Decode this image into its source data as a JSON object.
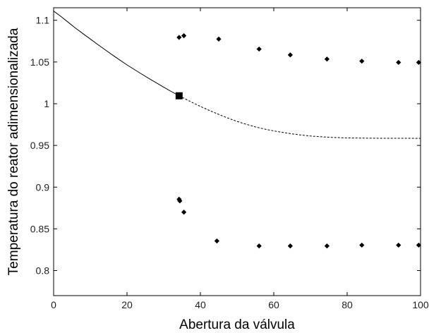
{
  "chart_data": {
    "type": "scatter",
    "title": "",
    "xlabel": "Abertura da válvula",
    "ylabel": "Temperatura do reator adimensionalizada",
    "xlim": [
      0,
      100
    ],
    "ylim": [
      0.77,
      1.115
    ],
    "grid": false,
    "legend": "none",
    "xticks": [
      0,
      20,
      40,
      60,
      80,
      100
    ],
    "xtick_labels": [
      "0",
      "20",
      "40",
      "60",
      "80",
      "100"
    ],
    "yticks": [
      0.8,
      0.85,
      0.9,
      0.95,
      1.0,
      1.05,
      1.1
    ],
    "ytick_labels": [
      "0.8",
      "0.85",
      "0.9",
      "0.95",
      "1",
      "1.05",
      "1.1"
    ],
    "series": [
      {
        "style": "solid-line",
        "color": "#000000",
        "x": [
          0,
          2,
          4,
          6,
          8,
          10,
          12,
          14,
          16,
          18,
          20,
          22,
          24,
          26,
          28,
          30,
          32,
          34.2
        ],
        "y": [
          1.111,
          1.1045,
          1.0975,
          1.0905,
          1.084,
          1.0775,
          1.071,
          1.0648,
          1.0585,
          1.0525,
          1.0465,
          1.041,
          1.0355,
          1.0302,
          1.025,
          1.0198,
          1.0148,
          1.0095
        ]
      },
      {
        "style": "dashed-line",
        "color": "#000000",
        "x": [
          34.2,
          36,
          38,
          40,
          42,
          44,
          46,
          48,
          50,
          52,
          55,
          58,
          61,
          64,
          67,
          70,
          73,
          76,
          80,
          85,
          90,
          95,
          100
        ],
        "y": [
          1.0095,
          1.0055,
          1.001,
          0.9968,
          0.9928,
          0.989,
          0.9854,
          0.982,
          0.9788,
          0.976,
          0.9722,
          0.9691,
          0.9666,
          0.9645,
          0.9627,
          0.9613,
          0.9603,
          0.9596,
          0.959,
          0.9587,
          0.9586,
          0.9586,
          0.9585
        ]
      },
      {
        "style": "square-marker",
        "color": "#000000",
        "x": [
          34.2
        ],
        "y": [
          1.0095
        ]
      },
      {
        "style": "diamond-markers-upper",
        "color": "#000000",
        "x": [
          34.2,
          35.5,
          45,
          56,
          64.5,
          74.5,
          84,
          94,
          99.5
        ],
        "y": [
          1.0795,
          1.0815,
          1.0775,
          1.0655,
          1.0585,
          1.0535,
          1.051,
          1.0495,
          1.0495
        ]
      },
      {
        "style": "diamond-markers-lower",
        "color": "#000000",
        "x": [
          34.2,
          34.4,
          35.5,
          44.5,
          56,
          64.5,
          74.5,
          84,
          94,
          99.5
        ],
        "y": [
          0.8855,
          0.8835,
          0.87,
          0.8355,
          0.8295,
          0.8295,
          0.8295,
          0.8305,
          0.8305,
          0.8305
        ]
      }
    ]
  }
}
